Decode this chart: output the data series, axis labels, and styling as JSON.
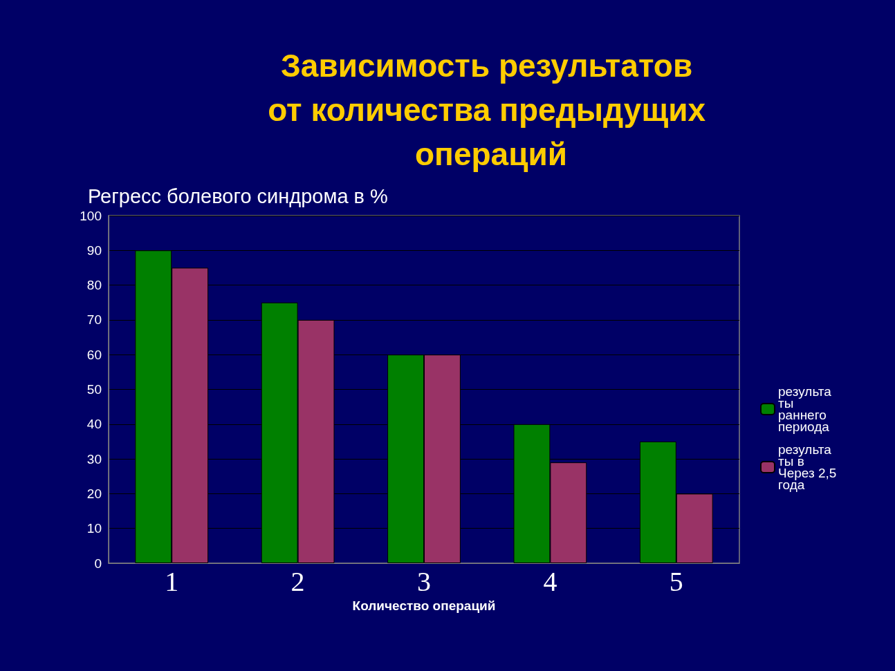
{
  "chart_data": {
    "type": "bar",
    "title": "Зависимость результатов от количества предыдущих операций",
    "ylabel": "Регресс болевого синдрома в %",
    "xlabel": "Количество операций",
    "categories": [
      "1",
      "2",
      "3",
      "4",
      "5"
    ],
    "series": [
      {
        "name": "результаты раннего периода",
        "color": "#008000",
        "values": [
          90,
          75,
          60,
          40,
          35
        ]
      },
      {
        "name": "результаты в Через 2,5 года",
        "color": "#993366",
        "values": [
          85,
          70,
          60,
          29,
          20
        ]
      }
    ],
    "ylim": [
      0,
      100
    ],
    "yticks": [
      0,
      10,
      20,
      30,
      40,
      50,
      60,
      70,
      80,
      90,
      100
    ],
    "grid": "y",
    "legend": "right"
  }
}
